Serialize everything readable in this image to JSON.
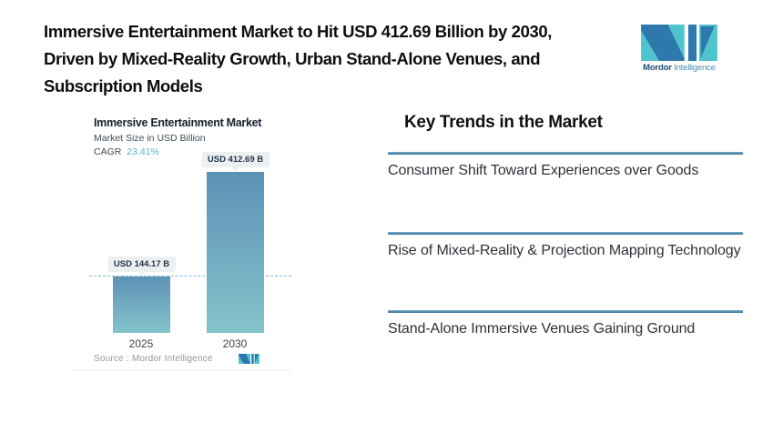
{
  "page": {
    "background": "#ffffff"
  },
  "header": {
    "headline_lines": [
      "Immersive Entertainment Market to Hit USD 412.69 Billion by 2030,",
      "Driven by Mixed-Reality Growth, Urban Stand-Alone Venues, and",
      "Subscription Models"
    ]
  },
  "brand": {
    "name_bold": "Mordor",
    "name_light": "Intelligence",
    "teal": "#4ec4cd",
    "blue": "#2d79ae"
  },
  "trends": {
    "title": "Key Trends in the Market",
    "items": [
      "Consumer Shift Toward Experiences over Goods",
      "Rise of Mixed-Reality & Projection Mapping Technology",
      "Stand-Alone Immersive Venues Gaining Ground"
    ],
    "rule_color": "#2e6b93"
  },
  "chart_data": {
    "type": "bar",
    "title": "Immersive Entertainment Market",
    "subtitle": "Market Size in USD Billion",
    "cagr_label": "CAGR",
    "cagr_value": "23.41%",
    "categories": [
      "2025",
      "2030"
    ],
    "values": [
      144.17,
      412.69
    ],
    "value_labels": [
      "USD 144.17 B",
      "USD 412.69 B"
    ],
    "ylabel": "USD Billion",
    "reference_line_value": 144.17,
    "source": "Source :  Mordor Intelligence",
    "grid": false,
    "legend_position": "none",
    "bar_color_top": "#5d92b6",
    "bar_color_bottom": "#84c3cb",
    "cagr_color": "#58aed8",
    "dash_color": "#86bcd9"
  }
}
